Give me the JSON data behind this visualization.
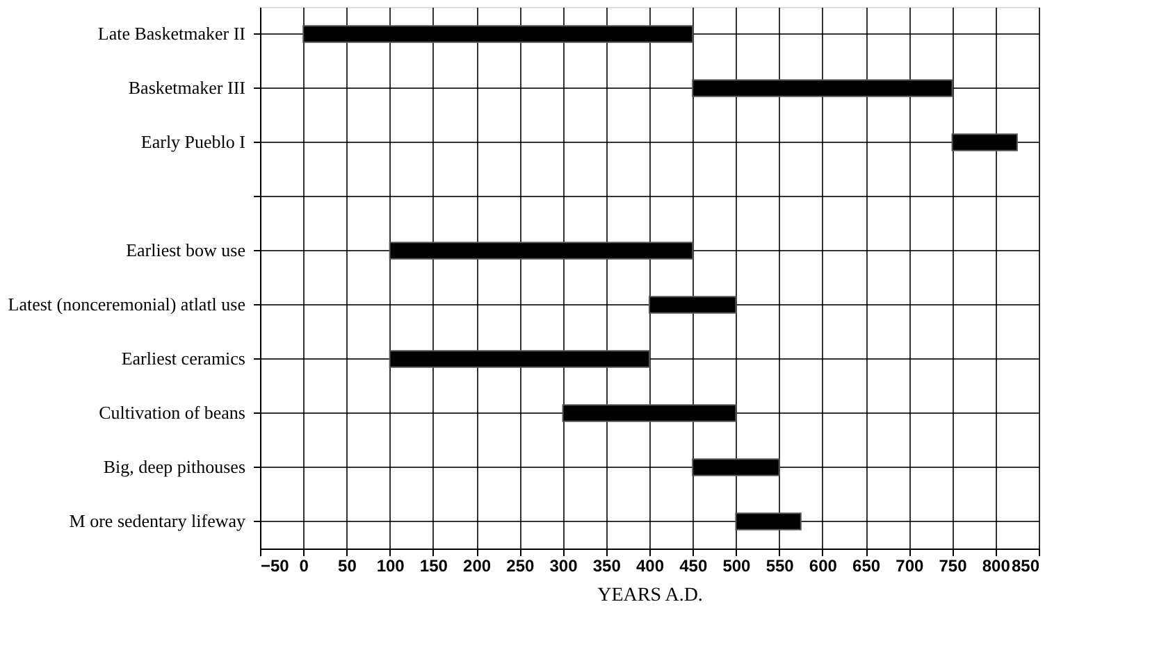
{
  "chart_data": {
    "type": "bar",
    "orientation": "horizontal",
    "xlabel": "YEARS A.D.",
    "categories": [
      "Late Basketmaker II",
      "Basketmaker III",
      "Early Pueblo I",
      null,
      "Earliest bow use",
      "Latest (nonceremonial) atlatl use",
      "Earliest ceramics",
      "Cultivation of beans",
      "Big, deep pithouses",
      "M ore sedentary lifeway"
    ],
    "base": [
      0,
      450,
      750,
      null,
      100,
      400,
      100,
      300,
      450,
      500
    ],
    "values": [
      450,
      300,
      75,
      null,
      350,
      100,
      300,
      200,
      100,
      75
    ],
    "color": "#000000",
    "xlim": [
      -50,
      850
    ],
    "xticks": [
      -50,
      0,
      50,
      100,
      150,
      200,
      250,
      300,
      350,
      400,
      450,
      500,
      550,
      600,
      650,
      700,
      750,
      800,
      850
    ],
    "grid": true
  }
}
